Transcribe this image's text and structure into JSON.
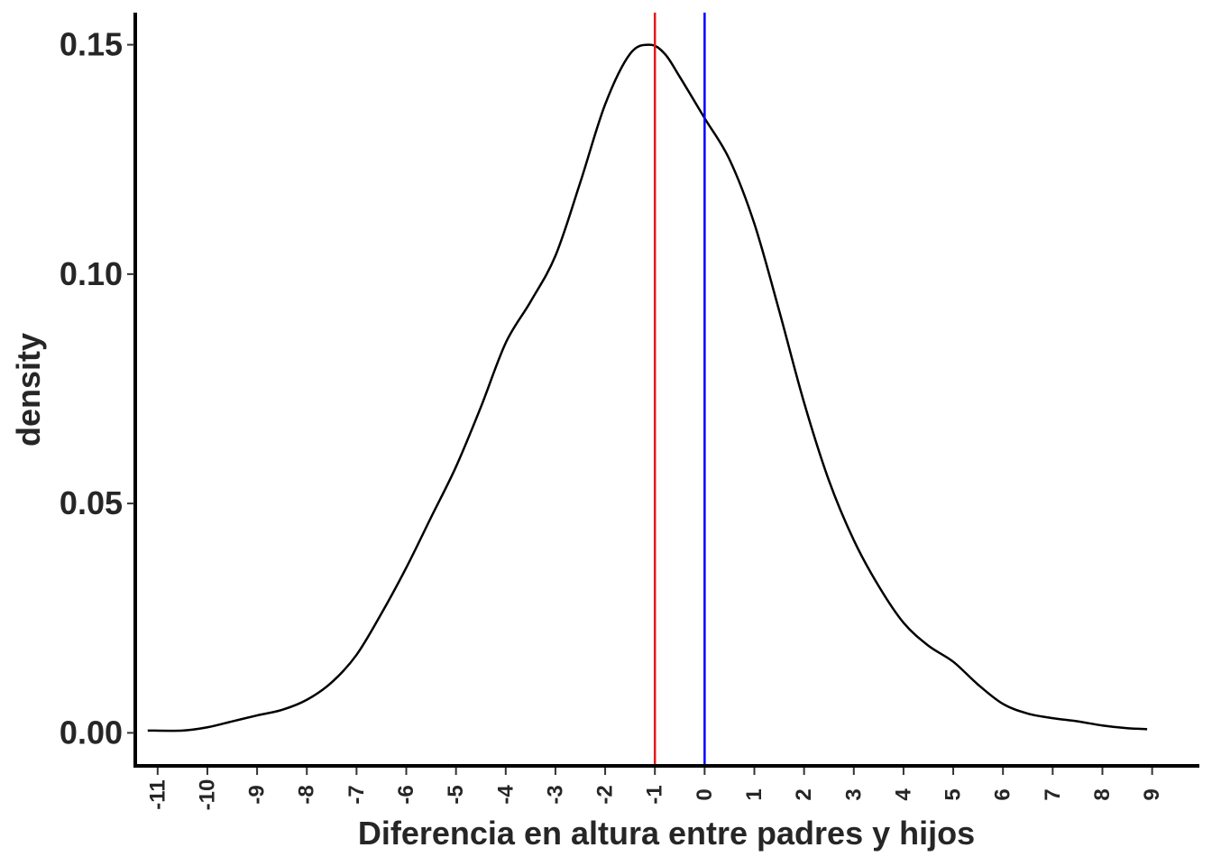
{
  "chart_data": {
    "type": "line",
    "subtype": "density",
    "xlabel": "Diferencia en altura entre padres y hijos",
    "ylabel": "density",
    "xlim": [
      -11.45,
      9.95
    ],
    "ylim": [
      -0.0072,
      0.157
    ],
    "x_ticks": [
      -11,
      -10,
      -9,
      -8,
      -7,
      -6,
      -5,
      -4,
      -3,
      -2,
      -1,
      0,
      1,
      2,
      3,
      4,
      5,
      6,
      7,
      8,
      9
    ],
    "y_ticks": [
      "0.00",
      "0.05",
      "0.10",
      "0.15"
    ],
    "grid": false,
    "legend": "none",
    "series": [
      {
        "color": "#000000",
        "x": [
          -11.2,
          -10.5,
          -10.0,
          -9.5,
          -9.0,
          -8.5,
          -8.0,
          -7.5,
          -7.0,
          -6.5,
          -6.0,
          -5.5,
          -5.0,
          -4.5,
          -4.0,
          -3.5,
          -3.0,
          -2.5,
          -2.0,
          -1.5,
          -1.1,
          -0.8,
          -0.5,
          0.0,
          0.5,
          1.0,
          1.5,
          2.0,
          2.5,
          3.0,
          3.5,
          4.0,
          4.5,
          5.0,
          5.5,
          6.0,
          6.5,
          7.0,
          7.5,
          8.0,
          8.5,
          8.9
        ],
        "y": [
          0.0005,
          0.0005,
          0.0012,
          0.0025,
          0.0038,
          0.005,
          0.0072,
          0.011,
          0.017,
          0.026,
          0.036,
          0.047,
          0.058,
          0.071,
          0.085,
          0.094,
          0.104,
          0.12,
          0.137,
          0.148,
          0.15,
          0.148,
          0.143,
          0.134,
          0.125,
          0.111,
          0.092,
          0.072,
          0.055,
          0.042,
          0.032,
          0.024,
          0.019,
          0.0155,
          0.0105,
          0.0063,
          0.0042,
          0.0032,
          0.0025,
          0.0016,
          0.001,
          0.0008
        ]
      }
    ],
    "vlines": [
      {
        "x": -1.0,
        "color": "#e31a1c"
      },
      {
        "x": 0.0,
        "color": "#0000ff"
      }
    ]
  }
}
